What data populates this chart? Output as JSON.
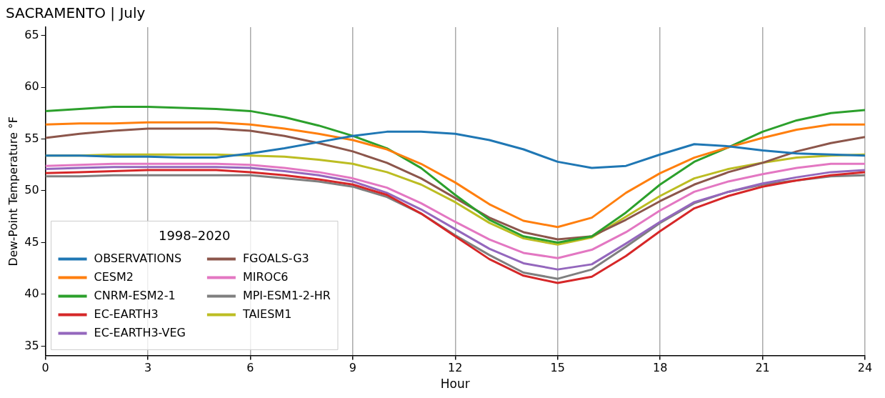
{
  "chart_data": {
    "type": "line",
    "title": "SACRAMENTO | July",
    "xlabel": "Hour",
    "ylabel": "Dew-Point Temperature °F",
    "legend_title": "1998–2020",
    "x": [
      0,
      1,
      2,
      3,
      4,
      5,
      6,
      7,
      8,
      9,
      10,
      11,
      12,
      13,
      14,
      15,
      16,
      17,
      18,
      19,
      20,
      21,
      22,
      23,
      24
    ],
    "xlim": [
      0,
      24
    ],
    "xticks": [
      0,
      3,
      6,
      9,
      12,
      15,
      18,
      21,
      24
    ],
    "ylim": [
      34.1,
      65.8
    ],
    "yticks": [
      35,
      40,
      45,
      50,
      55,
      60,
      65
    ],
    "grid": "x",
    "legend": "bottom left",
    "series": [
      {
        "name": "OBSERVATIONS",
        "color": "#1f77b4",
        "values": [
          53.4,
          53.4,
          53.3,
          53.3,
          53.2,
          53.2,
          53.6,
          54.1,
          54.7,
          55.3,
          55.7,
          55.7,
          55.5,
          54.9,
          54.0,
          52.8,
          52.2,
          52.4,
          53.5,
          54.5,
          54.3,
          53.9,
          53.6,
          53.5,
          53.4
        ]
      },
      {
        "name": "CESM2",
        "color": "#ff7f0e",
        "values": [
          56.4,
          56.5,
          56.5,
          56.6,
          56.6,
          56.6,
          56.4,
          56.0,
          55.5,
          54.9,
          54.0,
          52.6,
          50.8,
          48.7,
          47.1,
          46.5,
          47.4,
          49.8,
          51.7,
          53.2,
          54.2,
          55.1,
          55.9,
          56.4,
          56.4
        ]
      },
      {
        "name": "CNRM-ESM2-1",
        "color": "#2ca02c",
        "values": [
          57.7,
          57.9,
          58.1,
          58.1,
          58.0,
          57.9,
          57.7,
          57.1,
          56.3,
          55.3,
          54.1,
          52.2,
          49.6,
          47.2,
          45.6,
          45.0,
          45.6,
          47.9,
          50.6,
          52.8,
          54.2,
          55.7,
          56.8,
          57.5,
          57.8
        ]
      },
      {
        "name": "EC-EARTH3",
        "color": "#d62728",
        "values": [
          51.7,
          51.8,
          51.9,
          52.0,
          52.0,
          52.0,
          51.8,
          51.5,
          51.1,
          50.6,
          49.6,
          47.8,
          45.6,
          43.4,
          41.8,
          41.1,
          41.7,
          43.7,
          46.1,
          48.3,
          49.5,
          50.4,
          51.0,
          51.5,
          51.8
        ]
      },
      {
        "name": "EC-EARTH3-VEG",
        "color": "#9467bd",
        "values": [
          52.1,
          52.2,
          52.3,
          52.3,
          52.3,
          52.3,
          52.2,
          51.9,
          51.5,
          50.9,
          49.8,
          48.2,
          46.3,
          44.4,
          43.0,
          42.4,
          42.9,
          44.9,
          47.0,
          48.9,
          49.9,
          50.7,
          51.3,
          51.8,
          52.0
        ]
      },
      {
        "name": "FGOALS-G3",
        "color": "#8c564b",
        "values": [
          55.1,
          55.5,
          55.8,
          56.0,
          56.0,
          56.0,
          55.8,
          55.3,
          54.6,
          53.8,
          52.7,
          51.2,
          49.3,
          47.4,
          46.0,
          45.3,
          45.6,
          47.2,
          49.0,
          50.6,
          51.8,
          52.7,
          53.8,
          54.6,
          55.2
        ]
      },
      {
        "name": "MIROC6",
        "color": "#e377c2",
        "values": [
          52.4,
          52.5,
          52.6,
          52.6,
          52.6,
          52.6,
          52.5,
          52.2,
          51.8,
          51.2,
          50.3,
          48.8,
          47.0,
          45.3,
          44.0,
          43.5,
          44.3,
          46.0,
          48.1,
          49.9,
          50.9,
          51.6,
          52.2,
          52.6,
          52.6
        ]
      },
      {
        "name": "MPI-ESM1-2-HR",
        "color": "#7f7f7f",
        "values": [
          51.4,
          51.4,
          51.5,
          51.5,
          51.5,
          51.5,
          51.5,
          51.2,
          50.9,
          50.4,
          49.4,
          47.8,
          45.7,
          43.8,
          42.1,
          41.5,
          42.4,
          44.6,
          46.9,
          48.8,
          49.9,
          50.6,
          51.0,
          51.4,
          51.5
        ]
      },
      {
        "name": "TAIESM1",
        "color": "#bcbd22",
        "values": [
          53.4,
          53.4,
          53.5,
          53.5,
          53.5,
          53.5,
          53.4,
          53.3,
          53.0,
          52.6,
          51.8,
          50.6,
          48.9,
          46.9,
          45.4,
          44.8,
          45.5,
          47.5,
          49.5,
          51.2,
          52.1,
          52.7,
          53.2,
          53.4,
          53.5
        ]
      }
    ]
  }
}
